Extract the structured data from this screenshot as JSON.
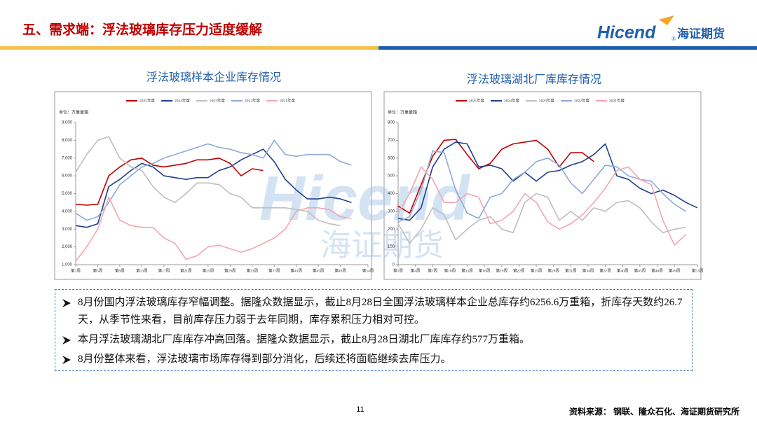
{
  "header": {
    "title": "五、需求端：浮法玻璃库存压力适度缓解",
    "logo_brand": "Hicend",
    "logo_reg": "®",
    "logo_name": "海证期货"
  },
  "watermark": {
    "brand": "Hicend",
    "name": "海证期货"
  },
  "chart_data": [
    {
      "type": "line",
      "title": "浮法玻璃样本企业库存情况",
      "unit": "单位：万重量箱",
      "x": [
        1,
        3,
        5,
        7,
        9,
        11,
        13,
        15,
        17,
        19,
        21,
        23,
        25,
        27,
        29,
        31,
        33,
        35,
        37,
        39,
        41,
        43,
        45,
        47,
        49,
        51,
        53
      ],
      "xlim": [
        1,
        54
      ],
      "xticks": [
        {
          "value": 1,
          "label": "第1周"
        },
        {
          "value": 5,
          "label": "第5周"
        },
        {
          "value": 9,
          "label": "第9周"
        },
        {
          "value": 13,
          "label": "第13周"
        },
        {
          "value": 17,
          "label": "第17周"
        },
        {
          "value": 21,
          "label": "第21周"
        },
        {
          "value": 25,
          "label": "第25周"
        },
        {
          "value": 29,
          "label": "第29周"
        },
        {
          "value": 33,
          "label": "第33周"
        },
        {
          "value": 37,
          "label": "第37周"
        },
        {
          "value": 41,
          "label": "第41周"
        },
        {
          "value": 45,
          "label": "第45周"
        },
        {
          "value": 49,
          "label": "第49周"
        },
        {
          "value": 54,
          "label": "第54周"
        }
      ],
      "ylim": [
        1000,
        9000
      ],
      "yticks": [
        {
          "value": 1000,
          "label": "1,000"
        },
        {
          "value": 2000,
          "label": "2,000"
        },
        {
          "value": 3000,
          "label": "3,000"
        },
        {
          "value": 4000,
          "label": "4,000"
        },
        {
          "value": 5000,
          "label": "5,000"
        },
        {
          "value": 6000,
          "label": "6,000"
        },
        {
          "value": 7000,
          "label": "7,000"
        },
        {
          "value": 8000,
          "label": "8,000"
        },
        {
          "value": 9000,
          "label": "9,000"
        }
      ],
      "series": [
        {
          "name": "2025年度",
          "color": "#c00000",
          "values": [
            4400,
            4350,
            4400,
            6000,
            6500,
            6900,
            7000,
            6600,
            6500,
            6600,
            6700,
            6900,
            6900,
            7000,
            6700,
            6000,
            6400,
            6300,
            null,
            null,
            null,
            null,
            null,
            null,
            null,
            null,
            null
          ]
        },
        {
          "name": "2024年度",
          "color": "#1f3f8f",
          "values": [
            3200,
            3100,
            3300,
            5400,
            5800,
            6300,
            6700,
            6500,
            6000,
            5900,
            5800,
            5900,
            5900,
            6300,
            6500,
            6900,
            7200,
            7500,
            6800,
            5800,
            5200,
            4700,
            4700,
            4800,
            4700,
            4500,
            null
          ]
        },
        {
          "name": "2023年度",
          "color": "#bfbfbf",
          "values": [
            6200,
            7200,
            8000,
            8200,
            7000,
            6500,
            6300,
            5400,
            4800,
            4500,
            5000,
            5600,
            5600,
            5500,
            5000,
            4800,
            4200,
            4200,
            4200,
            4200,
            4100,
            4000,
            3500,
            3300,
            3200,
            null,
            null
          ]
        },
        {
          "name": "2022年度",
          "color": "#8ea9db",
          "values": [
            3900,
            3500,
            3700,
            4500,
            5500,
            6000,
            6500,
            6700,
            7000,
            7200,
            7400,
            7600,
            7800,
            7600,
            7500,
            7300,
            7200,
            7000,
            8000,
            7200,
            7100,
            7200,
            7200,
            7200,
            6800,
            6600,
            null
          ]
        },
        {
          "name": "2021年度",
          "color": "#f4a6b0",
          "values": [
            1200,
            2000,
            3000,
            4800,
            3500,
            3200,
            3100,
            3100,
            2500,
            2200,
            1300,
            1500,
            2000,
            2100,
            1900,
            1700,
            1900,
            2200,
            2500,
            3000,
            4000,
            4200,
            4200,
            4100,
            3700,
            3600,
            null
          ]
        }
      ]
    },
    {
      "type": "line",
      "title": "浮法玻璃湖北厂库库存情况",
      "unit": "单位：万重量箱",
      "x": [
        1,
        3,
        5,
        7,
        9,
        11,
        13,
        15,
        17,
        19,
        21,
        23,
        25,
        27,
        29,
        31,
        33,
        35,
        37,
        39,
        41,
        43,
        45,
        47,
        49,
        51,
        53
      ],
      "xlim": [
        1,
        53
      ],
      "xticks": [
        {
          "value": 1,
          "label": "第1周"
        },
        {
          "value": 4,
          "label": "第4周"
        },
        {
          "value": 7,
          "label": "第7周"
        },
        {
          "value": 10,
          "label": "第10周"
        },
        {
          "value": 13,
          "label": "第13周"
        },
        {
          "value": 16,
          "label": "第16周"
        },
        {
          "value": 19,
          "label": "第19周"
        },
        {
          "value": 22,
          "label": "第22周"
        },
        {
          "value": 25,
          "label": "第25周"
        },
        {
          "value": 28,
          "label": "第28周"
        },
        {
          "value": 31,
          "label": "第31周"
        },
        {
          "value": 34,
          "label": "第34周"
        },
        {
          "value": 37,
          "label": "第37周"
        },
        {
          "value": 40,
          "label": "第40周"
        },
        {
          "value": 43,
          "label": "第43周"
        },
        {
          "value": 46,
          "label": "第46周"
        },
        {
          "value": 49,
          "label": "第49周"
        },
        {
          "value": 53,
          "label": "第53周"
        }
      ],
      "ylim": [
        0,
        800
      ],
      "yticks": [
        0,
        100,
        200,
        300,
        400,
        500,
        600,
        700,
        800
      ],
      "series": [
        {
          "name": "2025年度",
          "color": "#c00000",
          "values": [
            330,
            290,
            450,
            610,
            700,
            705,
            620,
            540,
            570,
            650,
            680,
            690,
            700,
            650,
            550,
            630,
            630,
            580,
            null,
            null,
            null,
            null,
            null,
            null,
            null,
            null,
            null
          ]
        },
        {
          "name": "2024年度",
          "color": "#1f3f8f",
          "values": [
            260,
            250,
            320,
            550,
            650,
            690,
            680,
            550,
            560,
            540,
            470,
            520,
            470,
            520,
            530,
            560,
            580,
            620,
            680,
            500,
            480,
            430,
            400,
            420,
            390,
            350,
            320
          ]
        },
        {
          "name": "2023年度",
          "color": "#bfbfbf",
          "values": [
            230,
            120,
            200,
            320,
            280,
            140,
            200,
            250,
            270,
            200,
            180,
            350,
            400,
            380,
            250,
            300,
            250,
            320,
            300,
            350,
            360,
            320,
            240,
            180,
            200,
            210,
            null
          ]
        },
        {
          "name": "2022年度",
          "color": "#8ea9db",
          "values": [
            240,
            270,
            420,
            640,
            630,
            420,
            290,
            260,
            380,
            400,
            480,
            520,
            580,
            600,
            560,
            460,
            400,
            480,
            560,
            550,
            500,
            480,
            470,
            400,
            340,
            300,
            null
          ]
        },
        {
          "name": "2021年度",
          "color": "#f4a6b0",
          "values": [
            290,
            400,
            550,
            480,
            350,
            350,
            400,
            380,
            230,
            250,
            300,
            400,
            350,
            240,
            200,
            230,
            280,
            350,
            430,
            530,
            550,
            480,
            450,
            250,
            110,
            170,
            null
          ]
        }
      ]
    }
  ],
  "bullets": [
    "8月份国内浮法玻璃库存窄幅调整。据隆众数据显示，截止8月28日全国浮法玻璃样本企业总库存约6256.6万重箱，折库存天数约26.7天，从季节性来看，目前库存压力弱于去年同期，库存累积压力相对可控。",
    "本月浮法玻璃湖北厂库库存冲高回落。据隆众数据显示，截止8月28日湖北厂库库存约577万重箱。",
    "8月份整体来看，浮法玻璃市场库存得到部分消化，后续还将面临继续去库压力。"
  ],
  "page_number": "11",
  "source": "资料来源：  钢联、隆众石化、海证期货研究所"
}
